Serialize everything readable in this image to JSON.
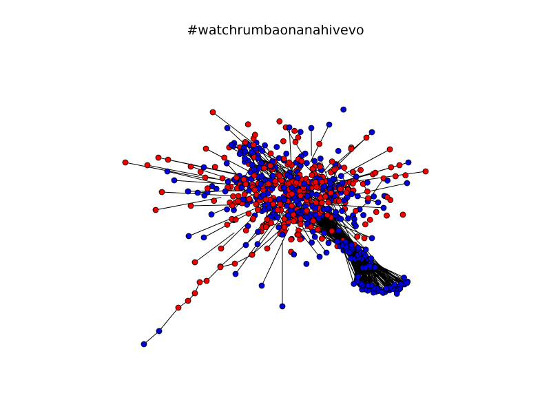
{
  "figure": {
    "title": "#watchrumbaonanahivevo"
  },
  "graph": {
    "node_colors": {
      "red": "#ee0000",
      "blue": "#0000dd"
    },
    "node_outline": "#000000",
    "edge_color": "#000000"
  }
}
